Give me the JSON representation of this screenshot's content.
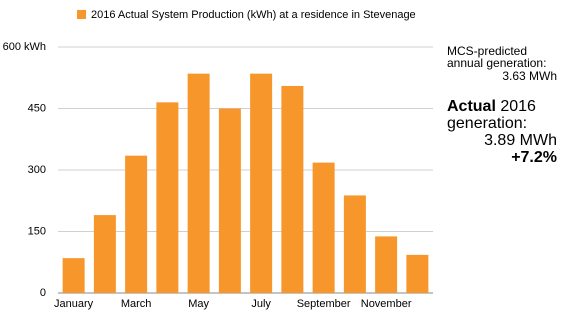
{
  "chart_data": {
    "type": "bar",
    "categories": [
      "January",
      null,
      "March",
      null,
      "May",
      null,
      "July",
      null,
      "September",
      null,
      "November",
      null
    ],
    "series": [
      {
        "name": "2016 Actual System Production (kWh) at a residence in Stevenage",
        "color": "#f7962a",
        "values": [
          85,
          190,
          335,
          465,
          535,
          450,
          535,
          505,
          318,
          238,
          138,
          93
        ]
      }
    ],
    "ylim": [
      0,
      600
    ],
    "yticks": [
      0,
      150,
      300,
      450,
      {
        "value": 600,
        "label": "600 kWh"
      }
    ],
    "grid": true,
    "annotations": [
      "MCS-predicted annual generation:",
      "3.63 MWh",
      "Actual",
      "2016 generation:",
      "3.89 MWh",
      "+7.2%"
    ]
  }
}
